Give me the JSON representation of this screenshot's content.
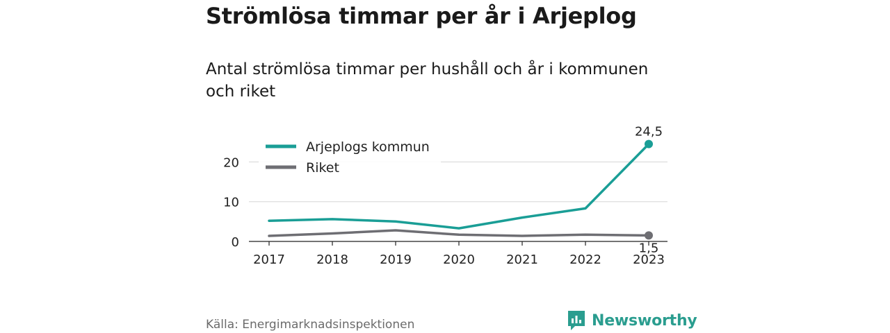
{
  "chart_data": {
    "type": "line",
    "title": "Strömlösa timmar per år i Arjeplog",
    "subtitle": "Antal strömlösa timmar per hushåll och år i kommunen och riket",
    "x": [
      2017,
      2018,
      2019,
      2020,
      2021,
      2022,
      2023
    ],
    "series": [
      {
        "name": "Arjeplogs kommun",
        "color": "#1a9e96",
        "values": [
          5.2,
          5.6,
          5.0,
          3.3,
          6.0,
          8.3,
          24.5
        ]
      },
      {
        "name": "Riket",
        "color": "#6e6e73",
        "values": [
          1.4,
          2.0,
          2.8,
          1.7,
          1.4,
          1.7,
          1.5
        ]
      }
    ],
    "ylim": [
      0,
      25
    ],
    "yticks": [
      0,
      10,
      20
    ],
    "end_labels": [
      "24,5",
      "1,5"
    ],
    "grid": true,
    "legend": "top-left"
  },
  "source": "Källa: Energimarknadsinspektionen",
  "brand": {
    "name": "Newsworthy",
    "color": "#2a9d8f",
    "icon": "newsworthy-logo-icon"
  }
}
